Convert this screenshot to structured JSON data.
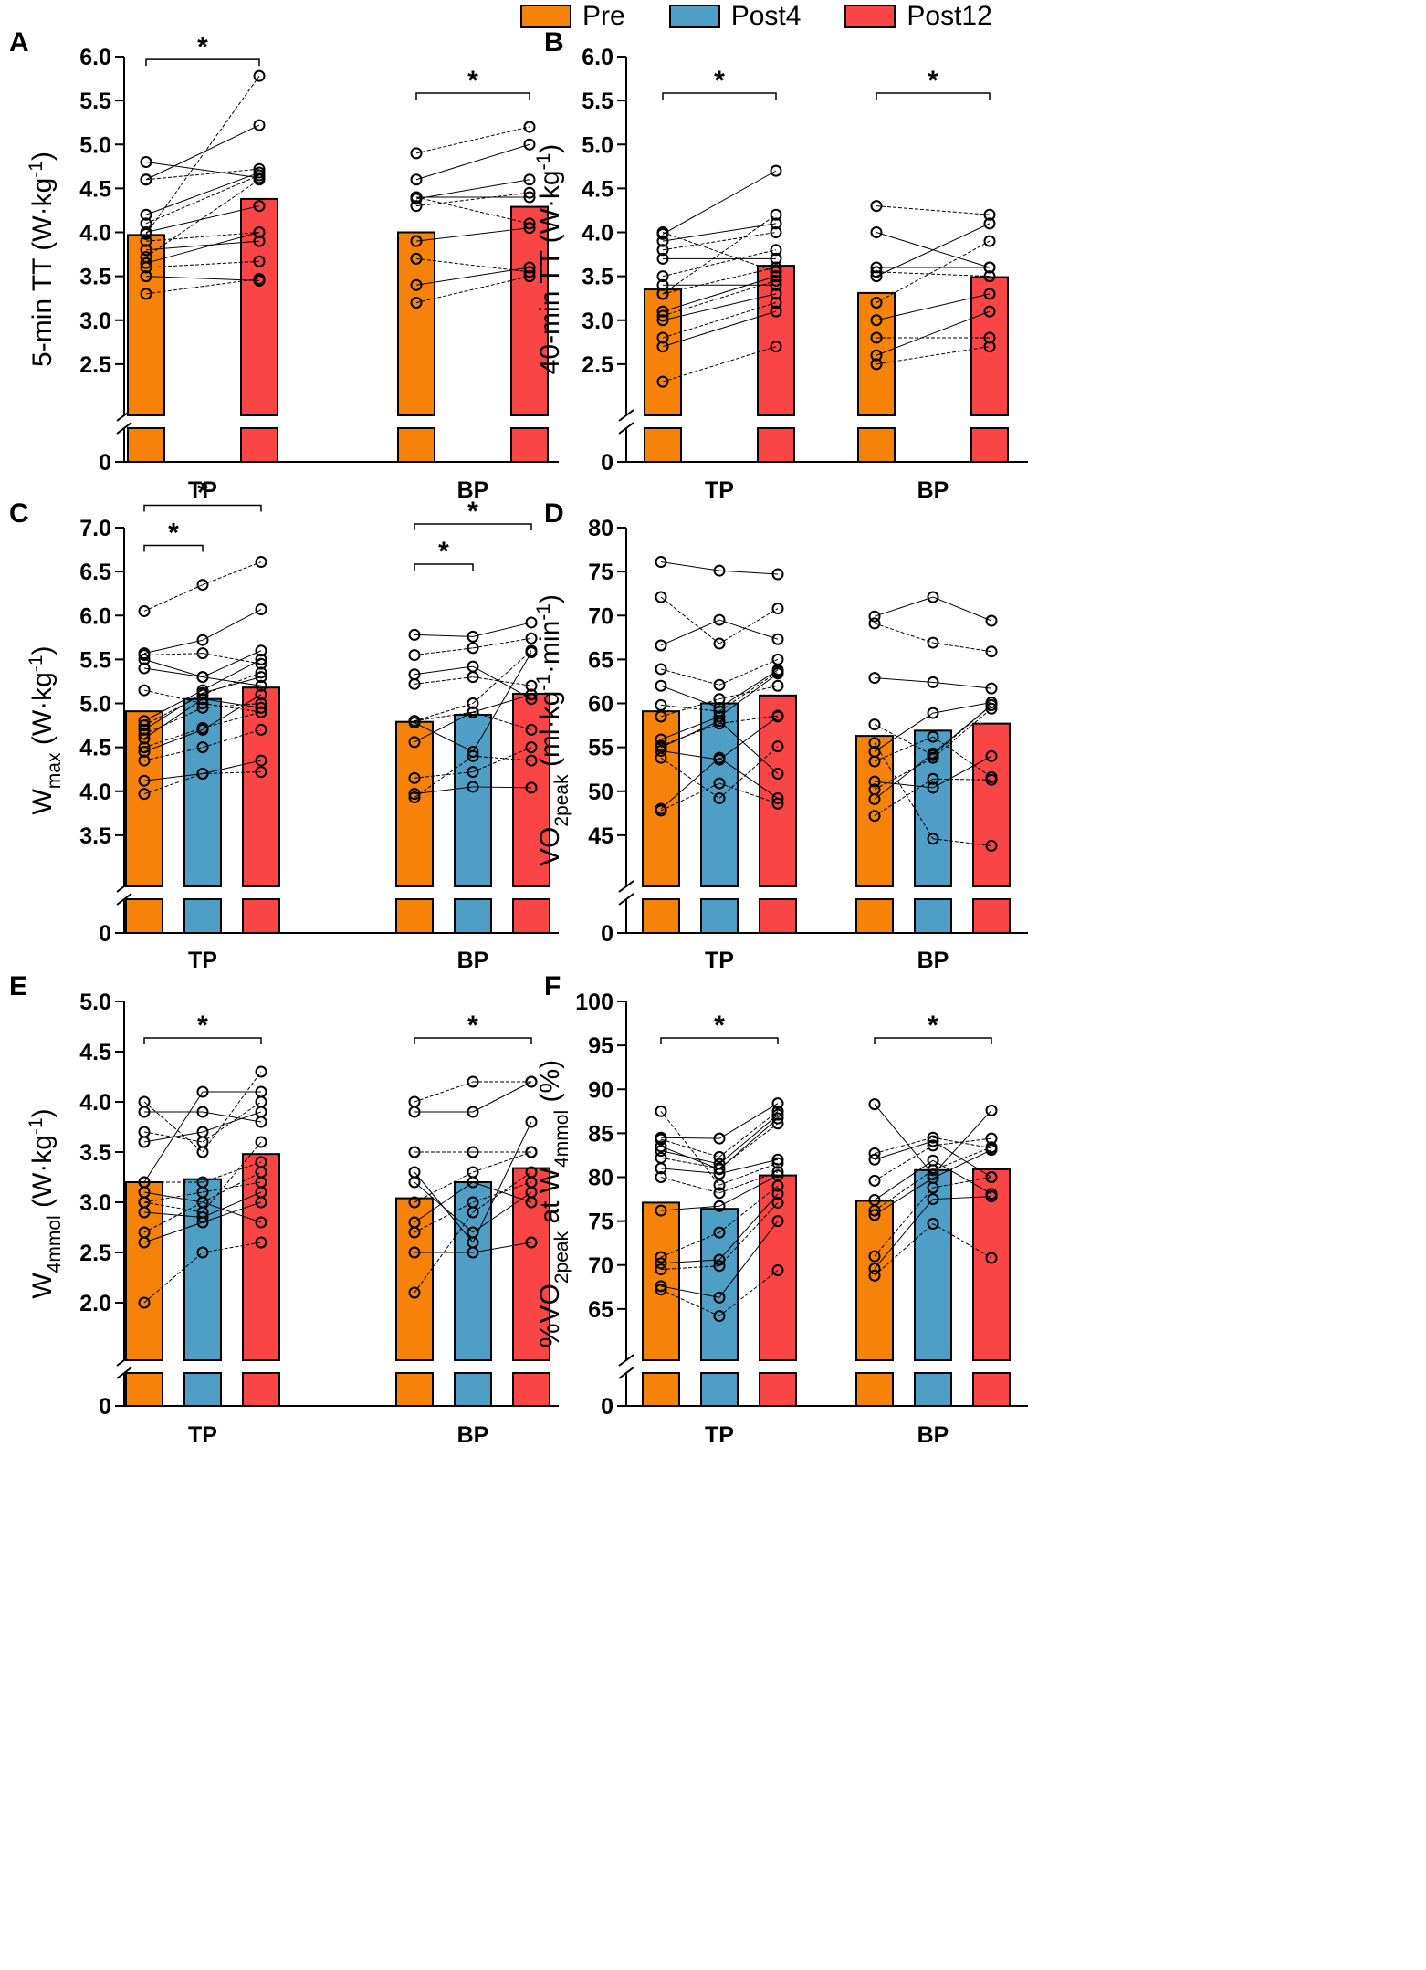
{
  "legend": [
    {
      "label": "Pre",
      "color": "#F7820A"
    },
    {
      "label": "Post4",
      "color": "#4F9EC6"
    },
    {
      "label": "Post12",
      "color": "#F94545"
    }
  ],
  "chart_data": [
    {
      "type": "bar",
      "panel": "A",
      "ylabel": "5-min TT (W·kg⁻¹)",
      "ylim": [
        2.0,
        6.0
      ],
      "yticks": [
        "2.5",
        "3.0",
        "3.5",
        "4.0",
        "4.5",
        "5.0",
        "5.5",
        "6.0"
      ],
      "ybreak_zero": "0",
      "groups": [
        "TP",
        "BP"
      ],
      "series": [
        {
          "name": "Pre",
          "values": [
            3.97,
            4.0
          ]
        },
        {
          "name": "Post12",
          "values": [
            4.38,
            4.29
          ]
        }
      ],
      "individual": {
        "TP": [
          [
            3.3,
            3.47
          ],
          [
            3.5,
            3.45
          ],
          [
            3.6,
            3.67
          ],
          [
            3.65,
            4.0
          ],
          [
            3.72,
            4.6
          ],
          [
            3.8,
            3.9
          ],
          [
            3.9,
            4.0
          ],
          [
            4.0,
            4.3
          ],
          [
            4.1,
            4.65
          ],
          [
            4.2,
            4.68
          ],
          [
            4.6,
            4.72
          ],
          [
            4.8,
            4.62
          ],
          [
            3.98,
            5.78
          ],
          [
            4.6,
            5.22
          ]
        ],
        "BP": [
          [
            3.2,
            3.5
          ],
          [
            3.4,
            3.6
          ],
          [
            3.7,
            3.55
          ],
          [
            3.9,
            4.05
          ],
          [
            4.3,
            4.45
          ],
          [
            4.38,
            4.6
          ],
          [
            4.4,
            4.1
          ],
          [
            4.6,
            5.0
          ],
          [
            4.9,
            5.2
          ],
          [
            4.4,
            4.4
          ]
        ]
      },
      "significance": [
        {
          "label": "*",
          "group": "TP",
          "from": "Pre",
          "to": "Post12"
        },
        {
          "label": "*",
          "group": "BP",
          "from": "Pre",
          "to": "Post12"
        }
      ]
    },
    {
      "type": "bar",
      "panel": "B",
      "ylabel": "40-min TT (W·kg⁻¹)",
      "ylim": [
        2.0,
        6.0
      ],
      "yticks": [
        "2.5",
        "3.0",
        "3.5",
        "4.0",
        "4.5",
        "5.0",
        "5.5",
        "6.0"
      ],
      "ybreak_zero": "0",
      "groups": [
        "TP",
        "BP"
      ],
      "series": [
        {
          "name": "Pre",
          "values": [
            3.35,
            3.31
          ]
        },
        {
          "name": "Post12",
          "values": [
            3.62,
            3.49
          ]
        }
      ],
      "individual": {
        "TP": [
          [
            2.3,
            2.7
          ],
          [
            2.7,
            3.1
          ],
          [
            2.8,
            3.2
          ],
          [
            3.0,
            3.3
          ],
          [
            3.05,
            3.45
          ],
          [
            3.1,
            3.5
          ],
          [
            3.3,
            3.6
          ],
          [
            3.4,
            3.4
          ],
          [
            3.5,
            3.8
          ],
          [
            3.7,
            3.7
          ],
          [
            3.8,
            4.0
          ],
          [
            3.9,
            4.1
          ],
          [
            4.0,
            3.55
          ],
          [
            3.98,
            4.7
          ],
          [
            3.3,
            4.2
          ]
        ],
        "BP": [
          [
            2.5,
            2.7
          ],
          [
            2.6,
            3.1
          ],
          [
            2.8,
            2.8
          ],
          [
            3.0,
            3.3
          ],
          [
            3.2,
            3.9
          ],
          [
            3.5,
            4.1
          ],
          [
            3.55,
            3.5
          ],
          [
            4.0,
            3.6
          ],
          [
            4.3,
            4.2
          ],
          [
            3.6,
            3.6
          ]
        ]
      },
      "significance": [
        {
          "label": "*",
          "group": "TP",
          "from": "Pre",
          "to": "Post12"
        },
        {
          "label": "*",
          "group": "BP",
          "from": "Pre",
          "to": "Post12"
        }
      ]
    },
    {
      "type": "bar",
      "panel": "C",
      "ylabel": "Wmax (W·kg⁻¹)",
      "ylim": [
        3.0,
        7.0
      ],
      "yticks": [
        "3.5",
        "4.0",
        "4.5",
        "5.0",
        "5.5",
        "6.0",
        "6.5",
        "7.0"
      ],
      "ybreak_zero": "0",
      "groups": [
        "TP",
        "BP"
      ],
      "series": [
        {
          "name": "Pre",
          "values": [
            4.91,
            4.79
          ]
        },
        {
          "name": "Post4",
          "values": [
            5.05,
            4.87
          ]
        },
        {
          "name": "Post12",
          "values": [
            5.18,
            5.11
          ]
        }
      ],
      "individual": {
        "TP": [
          [
            3.97,
            4.2,
            4.22
          ],
          [
            4.12,
            4.2,
            4.35
          ],
          [
            4.35,
            4.5,
            4.7
          ],
          [
            4.45,
            4.7,
            5.1
          ],
          [
            4.5,
            4.72,
            4.9
          ],
          [
            4.6,
            5.05,
            4.95
          ],
          [
            4.65,
            4.95,
            5.0
          ],
          [
            4.7,
            5.12,
            5.3
          ],
          [
            4.75,
            5.1,
            5.35
          ],
          [
            4.8,
            5.15,
            5.5
          ],
          [
            5.15,
            5.0,
            4.9
          ],
          [
            5.4,
            5.3,
            5.6
          ],
          [
            5.55,
            5.57,
            5.45
          ],
          [
            5.57,
            5.72,
            6.07
          ],
          [
            6.05,
            6.35,
            6.61
          ],
          [
            5.5,
            5.3,
            5.2
          ]
        ],
        "BP": [
          [
            3.93,
            4.4,
            4.35
          ],
          [
            3.97,
            4.05,
            4.04
          ],
          [
            4.15,
            4.22,
            4.5
          ],
          [
            4.56,
            4.9,
            5.1
          ],
          [
            4.8,
            5.0,
            5.6
          ],
          [
            4.78,
            4.45,
            5.58
          ],
          [
            5.22,
            5.3,
            5.2
          ],
          [
            5.33,
            5.42,
            5.05
          ],
          [
            5.55,
            5.63,
            5.74
          ],
          [
            5.78,
            5.76,
            5.92
          ],
          [
            4.8,
            4.9,
            4.7
          ]
        ]
      },
      "significance": [
        {
          "label": "*",
          "group": "TP",
          "from": "Pre",
          "to": "Post4"
        },
        {
          "label": "*",
          "group": "TP",
          "from": "Pre",
          "to": "Post12"
        },
        {
          "label": "*",
          "group": "BP",
          "from": "Pre",
          "to": "Post4"
        },
        {
          "label": "*",
          "group": "BP",
          "from": "Pre",
          "to": "Post12"
        }
      ]
    },
    {
      "type": "bar",
      "panel": "D",
      "ylabel": "VO2peak (ml·kg⁻¹·min⁻¹)",
      "ylim": [
        40,
        80
      ],
      "yticks": [
        "45",
        "50",
        "55",
        "60",
        "65",
        "70",
        "75",
        "80"
      ],
      "ybreak_zero": "0",
      "groups": [
        "TP",
        "BP"
      ],
      "series": [
        {
          "name": "Pre",
          "values": [
            59.1,
            56.3
          ]
        },
        {
          "name": "Post4",
          "values": [
            60.0,
            56.9
          ]
        },
        {
          "name": "Post12",
          "values": [
            60.9,
            57.7
          ]
        }
      ],
      "individual": {
        "TP": [
          [
            47.8,
            50.9,
            48.6
          ],
          [
            48.0,
            53.8,
            49.2
          ],
          [
            53.8,
            49.2,
            55.1
          ],
          [
            54.6,
            53.6,
            58.5
          ],
          [
            55.2,
            57.7,
            58.6
          ],
          [
            55.9,
            58.5,
            63.4
          ],
          [
            59.8,
            59.1,
            63.6
          ],
          [
            62.0,
            59.5,
            63.8
          ],
          [
            63.9,
            62.1,
            65.0
          ],
          [
            66.6,
            69.5,
            67.3
          ],
          [
            72.1,
            66.8,
            70.8
          ],
          [
            76.1,
            75.1,
            74.7
          ],
          [
            58.5,
            60.5,
            62.0
          ],
          [
            55.0,
            58.0,
            52.0
          ]
        ],
        "BP": [
          [
            47.2,
            51.4,
            51.3
          ],
          [
            49.1,
            54.3,
            59.8
          ],
          [
            50.2,
            53.8,
            59.4
          ],
          [
            51.1,
            50.4,
            54.0
          ],
          [
            53.4,
            56.2,
            51.6
          ],
          [
            54.5,
            58.9,
            60.1
          ],
          [
            57.6,
            54.1,
            59.8
          ],
          [
            62.9,
            62.4,
            61.7
          ],
          [
            69.1,
            66.9,
            65.9
          ],
          [
            69.9,
            72.1,
            69.4
          ],
          [
            55.5,
            44.6,
            43.8
          ]
        ]
      },
      "significance": []
    },
    {
      "type": "bar",
      "panel": "E",
      "ylabel": "W4mmol (W·kg⁻¹)",
      "ylim": [
        1.5,
        5.0
      ],
      "yticks": [
        "2.0",
        "2.5",
        "3.0",
        "3.5",
        "4.0",
        "4.5",
        "5.0"
      ],
      "ybreak_zero": "0",
      "groups": [
        "TP",
        "BP"
      ],
      "series": [
        {
          "name": "Pre",
          "values": [
            3.2,
            3.04
          ]
        },
        {
          "name": "Post4",
          "values": [
            3.23,
            3.2
          ]
        },
        {
          "name": "Post12",
          "values": [
            3.48,
            3.34
          ]
        }
      ],
      "individual": {
        "TP": [
          [
            2.0,
            2.5,
            2.6
          ],
          [
            2.6,
            2.8,
            3.0
          ],
          [
            2.7,
            3.0,
            3.3
          ],
          [
            2.9,
            2.85,
            3.1
          ],
          [
            3.0,
            3.1,
            3.2
          ],
          [
            3.1,
            3.0,
            2.8
          ],
          [
            3.2,
            3.2,
            3.4
          ],
          [
            3.6,
            3.7,
            3.9
          ],
          [
            3.7,
            3.6,
            4.0
          ],
          [
            3.9,
            3.9,
            3.8
          ],
          [
            4.0,
            3.5,
            4.3
          ],
          [
            3.2,
            4.1,
            4.1
          ],
          [
            3.0,
            2.9,
            3.6
          ]
        ],
        "BP": [
          [
            2.1,
            2.9,
            3.3
          ],
          [
            2.5,
            2.5,
            2.6
          ],
          [
            2.7,
            3.0,
            3.2
          ],
          [
            2.8,
            3.2,
            3.0
          ],
          [
            3.0,
            3.3,
            3.5
          ],
          [
            3.2,
            2.7,
            3.1
          ],
          [
            3.5,
            3.5,
            3.5
          ],
          [
            3.9,
            3.9,
            4.2
          ],
          [
            4.0,
            4.2,
            4.2
          ],
          [
            3.3,
            2.6,
            3.8
          ]
        ]
      },
      "significance": [
        {
          "label": "*",
          "group": "TP",
          "from": "Pre",
          "to": "Post12"
        },
        {
          "label": "*",
          "group": "BP",
          "from": "Pre",
          "to": "Post12"
        }
      ]
    },
    {
      "type": "bar",
      "panel": "F",
      "ylabel": "%VO2peak at W4mmol (%)",
      "ylim": [
        60,
        100
      ],
      "yticks": [
        "65",
        "70",
        "75",
        "80",
        "85",
        "90",
        "95",
        "100"
      ],
      "ybreak_zero": "0",
      "groups": [
        "TP",
        "BP"
      ],
      "series": [
        {
          "name": "Pre",
          "values": [
            77.1,
            77.3
          ]
        },
        {
          "name": "Post4",
          "values": [
            76.4,
            80.8
          ]
        },
        {
          "name": "Post12",
          "values": [
            80.2,
            80.9
          ]
        }
      ],
      "individual": {
        "TP": [
          [
            67.2,
            64.2,
            69.4
          ],
          [
            67.6,
            66.3,
            75.0
          ],
          [
            69.5,
            69.9,
            77.1
          ],
          [
            70.2,
            70.6,
            78.1
          ],
          [
            70.9,
            73.7,
            79.0
          ],
          [
            76.2,
            76.7,
            80.2
          ],
          [
            80.0,
            78.2,
            80.6
          ],
          [
            81.0,
            80.4,
            82.0
          ],
          [
            82.2,
            81.0,
            86.1
          ],
          [
            83.0,
            81.5,
            87.1
          ],
          [
            84.3,
            82.3,
            87.5
          ],
          [
            84.5,
            84.4,
            88.4
          ],
          [
            87.5,
            79.1,
            81.6
          ],
          [
            83.5,
            80.9,
            86.7
          ]
        ],
        "BP": [
          [
            68.8,
            74.7,
            70.8
          ],
          [
            69.6,
            77.5,
            77.8
          ],
          [
            71.0,
            78.8,
            80.0
          ],
          [
            75.7,
            79.9,
            83.1
          ],
          [
            76.2,
            80.8,
            83.4
          ],
          [
            77.4,
            81.9,
            78.1
          ],
          [
            79.6,
            83.6,
            84.4
          ],
          [
            82.0,
            84.1,
            80.0
          ],
          [
            82.7,
            84.5,
            83.3
          ],
          [
            88.3,
            80.3,
            87.6
          ]
        ]
      },
      "significance": [
        {
          "label": "*",
          "group": "TP",
          "from": "Pre",
          "to": "Post12"
        },
        {
          "label": "*",
          "group": "BP",
          "from": "Pre",
          "to": "Post12"
        }
      ]
    }
  ],
  "panels": [
    {
      "letter": "A",
      "ylabel_main": "5-min TT (W·kg",
      "ylabel_sup": "-1",
      "ylabel_end": ")"
    },
    {
      "letter": "B",
      "ylabel_main": "40-min TT (W·kg",
      "ylabel_sup": "-1",
      "ylabel_end": ")"
    },
    {
      "letter": "C",
      "ylabel_main": "W",
      "ylabel_sub": "max",
      "ylabel_mid": " (W·kg",
      "ylabel_sup": "-1",
      "ylabel_end": ")"
    },
    {
      "letter": "D",
      "ylabel_main": "VO",
      "ylabel_sub": "2peak",
      "ylabel_mid": " (ml·kg",
      "ylabel_sup": "-1",
      "ylabel_mid2": "·min",
      "ylabel_sup2": "-1",
      "ylabel_end": ")"
    },
    {
      "letter": "E",
      "ylabel_main": "W",
      "ylabel_sub": "4mmol",
      "ylabel_mid": " (W·kg",
      "ylabel_sup": "-1",
      "ylabel_end": ")"
    },
    {
      "letter": "F",
      "ylabel_main": "%VO",
      "ylabel_sub": "2peak",
      "ylabel_mid": " at W",
      "ylabel_sub2": "4mmol",
      "ylabel_end": " (%)"
    }
  ]
}
